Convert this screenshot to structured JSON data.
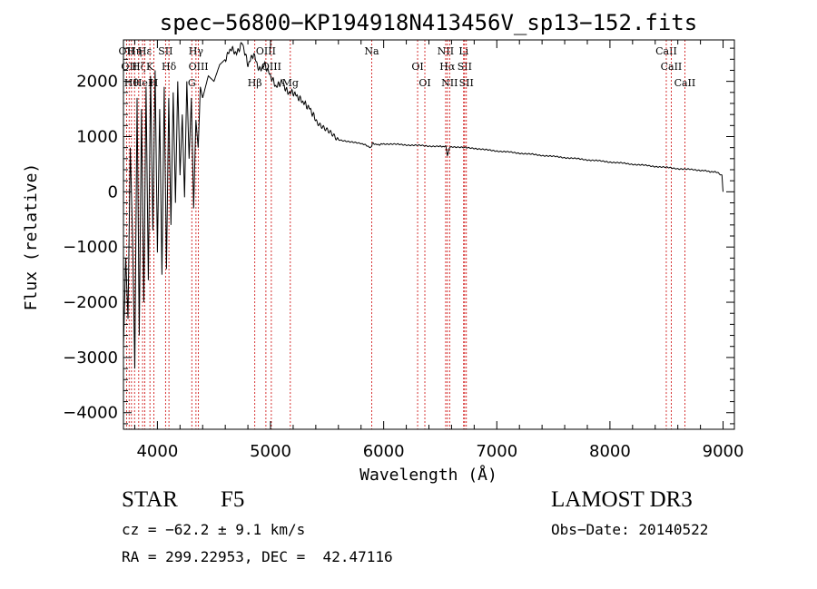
{
  "chart_data": {
    "type": "line",
    "title": "spec−56800−KP194918N413456V_sp13−152.fits",
    "xlabel": "Wavelength (Å)",
    "ylabel": "Flux (relative)",
    "xlim": [
      3700,
      9100
    ],
    "ylim": [
      -4300,
      2750
    ],
    "xticks": [
      4000,
      5000,
      6000,
      7000,
      8000,
      9000
    ],
    "yticks": [
      -4000,
      -3000,
      -2000,
      -1000,
      0,
      1000,
      2000
    ],
    "ytick_labels": [
      "−4000",
      "−3000",
      "−2000",
      "−1000",
      "0",
      "1000",
      "2000"
    ],
    "series": [
      {
        "name": "spectrum",
        "x": [
          3700,
          3720,
          3740,
          3760,
          3780,
          3800,
          3820,
          3840,
          3860,
          3880,
          3900,
          3920,
          3940,
          3960,
          3980,
          4000,
          4020,
          4040,
          4060,
          4080,
          4100,
          4120,
          4140,
          4160,
          4180,
          4200,
          4220,
          4240,
          4260,
          4280,
          4300,
          4320,
          4340,
          4360,
          4380,
          4400,
          4450,
          4500,
          4550,
          4600,
          4650,
          4700,
          4750,
          4800,
          4850,
          4900,
          4950,
          5000,
          5050,
          5100,
          5150,
          5200,
          5250,
          5300,
          5350,
          5400,
          5500,
          5600,
          5700,
          5800,
          5890,
          5900,
          5950,
          6000,
          6100,
          6200,
          6300,
          6400,
          6500,
          6550,
          6563,
          6580,
          6600,
          6700,
          6800,
          6900,
          7000,
          7200,
          7400,
          7600,
          7800,
          8000,
          8200,
          8400,
          8600,
          8800,
          8950,
          8990,
          9000
        ],
        "y": [
          -2800,
          -1200,
          -2300,
          800,
          -800,
          -3200,
          1700,
          -2600,
          1500,
          -2000,
          1900,
          -1600,
          2100,
          -700,
          2200,
          -1100,
          1500,
          -1500,
          1900,
          -1400,
          1700,
          -600,
          1800,
          -200,
          2000,
          300,
          1400,
          -100,
          2000,
          600,
          1700,
          -300,
          1300,
          800,
          1900,
          1700,
          2100,
          2000,
          2300,
          2400,
          2600,
          2500,
          2700,
          2300,
          2500,
          2200,
          2300,
          2100,
          1900,
          2000,
          1800,
          1800,
          1700,
          1600,
          1500,
          1300,
          1100,
          950,
          900,
          880,
          800,
          880,
          850,
          870,
          860,
          850,
          840,
          830,
          820,
          820,
          650,
          800,
          820,
          800,
          790,
          760,
          740,
          700,
          660,
          620,
          580,
          540,
          500,
          460,
          420,
          390,
          350,
          300,
          0
        ]
      }
    ],
    "lines": [
      {
        "wavelength": 3727,
        "label": "OII"
      },
      {
        "wavelength": 3750,
        "label": "OII"
      },
      {
        "wavelength": 3771,
        "label": "Hθ"
      },
      {
        "wavelength": 3798,
        "label": "Hη"
      },
      {
        "wavelength": 3835,
        "label": "Hζ"
      },
      {
        "wavelength": 3869,
        "label": "HeI"
      },
      {
        "wavelength": 3889,
        "label": "Hε"
      },
      {
        "wavelength": 3934,
        "label": "K"
      },
      {
        "wavelength": 3969,
        "label": "H"
      },
      {
        "wavelength": 4072,
        "label": "SII"
      },
      {
        "wavelength": 4102,
        "label": "Hδ"
      },
      {
        "wavelength": 4304,
        "label": "G"
      },
      {
        "wavelength": 4341,
        "label": "Hγ"
      },
      {
        "wavelength": 4363,
        "label": "OIII"
      },
      {
        "wavelength": 4861,
        "label": "Hβ"
      },
      {
        "wavelength": 4959,
        "label": "OIII"
      },
      {
        "wavelength": 5007,
        "label": "OIII"
      },
      {
        "wavelength": 5175,
        "label": "Mg"
      },
      {
        "wavelength": 5894,
        "label": "Na"
      },
      {
        "wavelength": 6300,
        "label": "OI"
      },
      {
        "wavelength": 6364,
        "label": "OI"
      },
      {
        "wavelength": 6548,
        "label": "NII"
      },
      {
        "wavelength": 6563,
        "label": "Hα"
      },
      {
        "wavelength": 6583,
        "label": "NII"
      },
      {
        "wavelength": 6707,
        "label": "Li"
      },
      {
        "wavelength": 6716,
        "label": "SII"
      },
      {
        "wavelength": 6731,
        "label": "SII"
      },
      {
        "wavelength": 8498,
        "label": "CaII"
      },
      {
        "wavelength": 8542,
        "label": "CaII"
      },
      {
        "wavelength": 8662,
        "label": "CaII"
      }
    ]
  },
  "info": {
    "class_label": "STAR",
    "subclass": "F5",
    "survey": "LAMOST DR3",
    "cz_line": "cz = −62.2 ± 9.1 km/s",
    "obs_date_line": "Obs−Date: 20140522",
    "radec_line": "RA = 299.22953, DEC =  42.47116"
  }
}
